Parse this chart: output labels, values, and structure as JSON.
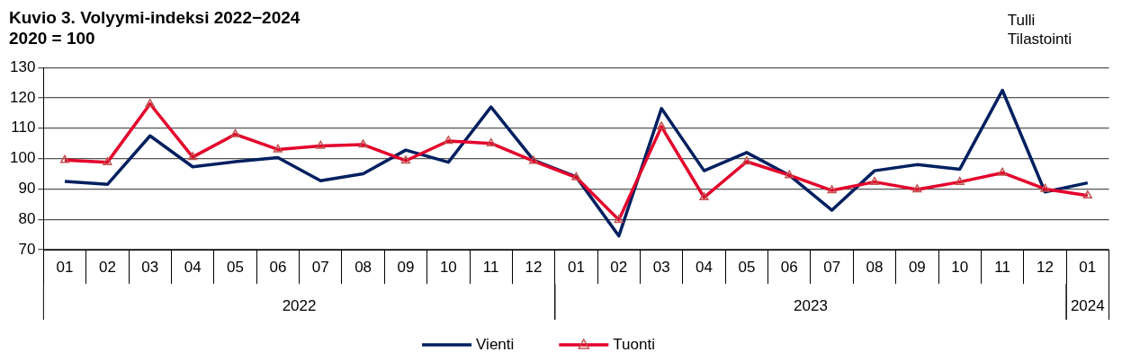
{
  "chart_data": {
    "type": "line",
    "title": "Kuvio 3. Volyymi-indeksi 2022−2024",
    "subtitle": "2020 = 100",
    "annotations": [
      "Tulli\nTilastointi",
      "2022",
      "2023",
      "2024"
    ],
    "categories": [
      "01",
      "02",
      "03",
      "04",
      "05",
      "06",
      "07",
      "08",
      "09",
      "10",
      "11",
      "12",
      "01",
      "02",
      "03",
      "04",
      "05",
      "06",
      "07",
      "08",
      "09",
      "10",
      "11",
      "12",
      "01"
    ],
    "series": [
      {
        "name": "Vienti",
        "color": "#002060",
        "marker": "none",
        "values": [
          92.5,
          91.5,
          107.5,
          97.3,
          99,
          100.3,
          92.7,
          95,
          102.8,
          98.8,
          117,
          99.5,
          94,
          74.5,
          116.5,
          96,
          102,
          94.5,
          83,
          96,
          98,
          96.5,
          122.5,
          89,
          92
        ]
      },
      {
        "name": "Tuonti",
        "color": "#e4002b",
        "marker": "triangle",
        "values": [
          99.5,
          98.8,
          118,
          100.5,
          108,
          103,
          104.2,
          104.6,
          99.3,
          105.8,
          105,
          99.2,
          93.8,
          79.8,
          110.5,
          87.2,
          99,
          94.5,
          89.5,
          92.3,
          89.8,
          92.3,
          95.3,
          90,
          87.8
        ]
      }
    ],
    "ylim": [
      70,
      130
    ],
    "yticks": [
      70,
      80,
      90,
      100,
      110,
      120,
      130
    ],
    "grid": "y",
    "legend": "bottom",
    "line_style": "solid"
  }
}
